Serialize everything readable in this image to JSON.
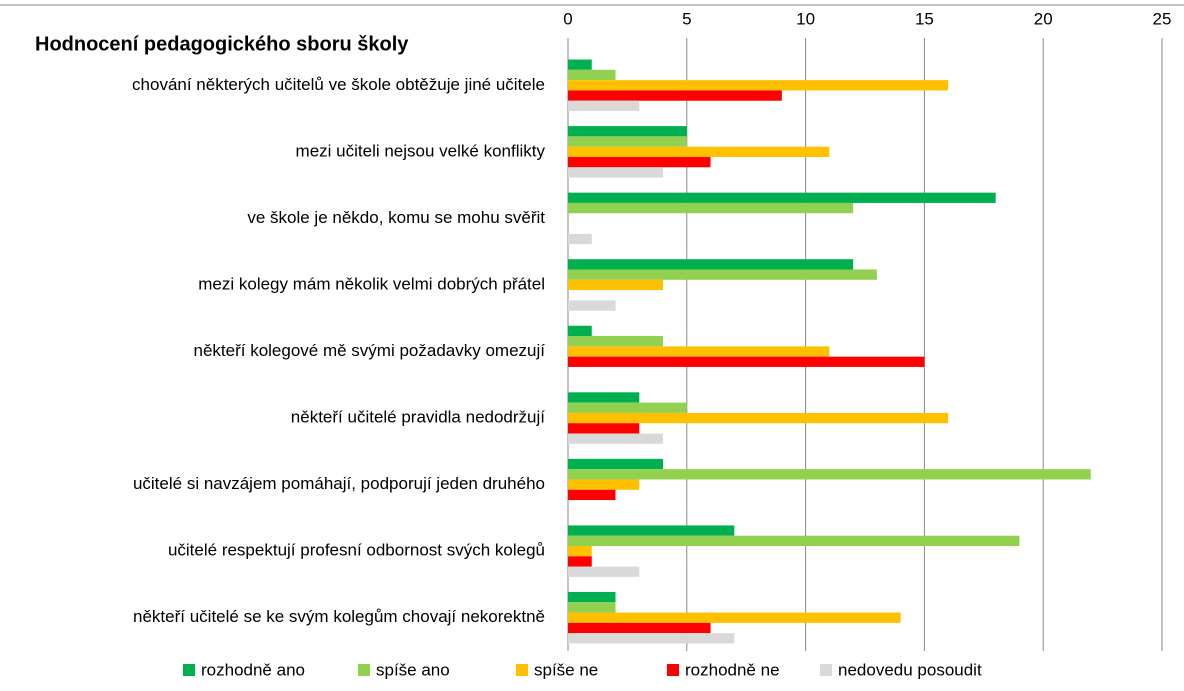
{
  "chart_data": {
    "type": "bar",
    "orientation": "horizontal",
    "title": "Hodnocení pedagogického sboru školy",
    "categories": [
      "chování některých učitelů ve škole obtěžuje jiné učitele",
      "mezi učiteli nejsou velké konflikty",
      "ve škole je někdo, komu se mohu svěřit",
      "mezi kolegy mám několik velmi dobrých přátel",
      "někteří kolegové mě svými požadavky omezují",
      "někteří učitelé pravidla nedodržují",
      "učitelé si navzájem pomáhají, podporují jeden druhého",
      "učitelé respektují profesní odbornost svých kolegů",
      "někteří učitelé se ke svým kolegům chovají nekorektně"
    ],
    "series": [
      {
        "name": "rozhodně ano",
        "color": "#00b050",
        "values": [
          1,
          5,
          18,
          12,
          1,
          3,
          4,
          7,
          2
        ]
      },
      {
        "name": "spíše ano",
        "color": "#92d050",
        "values": [
          2,
          5,
          12,
          13,
          4,
          5,
          22,
          19,
          2
        ]
      },
      {
        "name": "spíše ne",
        "color": "#ffc000",
        "values": [
          16,
          11,
          0,
          4,
          11,
          16,
          3,
          1,
          14
        ]
      },
      {
        "name": "rozhodně ne",
        "color": "#ff0000",
        "values": [
          9,
          6,
          0,
          0,
          15,
          3,
          2,
          1,
          6
        ]
      },
      {
        "name": "nedovedu posoudit",
        "color": "#d9d9d9",
        "values": [
          3,
          4,
          1,
          2,
          0,
          4,
          0,
          3,
          7
        ]
      }
    ],
    "xlim": [
      0,
      25
    ],
    "xticks": [
      0,
      5,
      10,
      15,
      20,
      25
    ],
    "grid": true
  }
}
